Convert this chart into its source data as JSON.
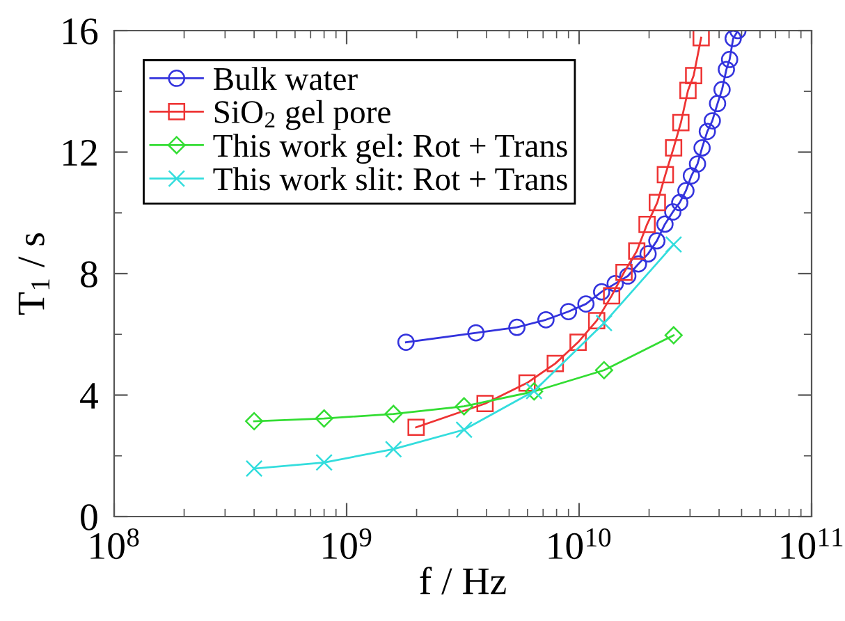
{
  "chart_data": {
    "type": "line",
    "xlabel": "f / Hz",
    "ylabel": "T$_{1}$ / s",
    "log": "x",
    "xlim": [
      100000000.0,
      100000000000.0
    ],
    "xticks": [
      {
        "value": 100000000.0,
        "label": "10$^{8}$"
      },
      {
        "value": 1000000000.0,
        "label": "10$^{9}$"
      },
      {
        "value": 10000000000.0,
        "label": "10$^{10}$"
      },
      {
        "value": 100000000000.0,
        "label": "10$^{11}$"
      }
    ],
    "ylim": [
      0,
      16
    ],
    "yticks": [
      0,
      4,
      8,
      12,
      16
    ],
    "grid": false,
    "legend": "top left",
    "line_style": "solid",
    "series": [
      {
        "name": "Bulk water",
        "color": "#3333dd",
        "marker": "circle",
        "x": [
          1800000000.0,
          3600000000.0,
          5400000000.0,
          7200000000.0,
          9000000000.0,
          10700000000.0,
          12500000000.0,
          14300000000.0,
          16200000000.0,
          18000000000.0,
          19800000000.0,
          21600000000.0,
          23400000000.0,
          25300000000.0,
          27100000000.0,
          28800000000.0,
          30400000000.0,
          32300000000.0,
          33800000000.0,
          35600000000.0,
          37400000000.0,
          39400000000.0,
          41200000000.0,
          43000000000.0,
          44400000000.0,
          46000000000.0,
          48200000000.0
        ],
        "values": [
          5.74,
          6.05,
          6.23,
          6.48,
          6.75,
          7.0,
          7.4,
          7.67,
          7.92,
          8.32,
          8.65,
          9.08,
          9.63,
          10.03,
          10.34,
          10.73,
          11.22,
          11.61,
          12.14,
          12.68,
          13.03,
          13.6,
          14.06,
          14.72,
          15.05,
          15.74,
          16.0
        ]
      },
      {
        "name": "SiO$_{2}$ gel pore",
        "color": "#ee3333",
        "marker": "square",
        "x": [
          1990000000.0,
          3940000000.0,
          5970000000.0,
          7900000000.0,
          9900000000.0,
          11900000000.0,
          13800000000.0,
          15600000000.0,
          17700000000.0,
          19600000000.0,
          21700000000.0,
          23500000000.0,
          25500000000.0,
          27400000000.0,
          29400000000.0,
          31100000000.0,
          33500000000.0
        ],
        "values": [
          2.94,
          3.72,
          4.4,
          5.04,
          5.74,
          6.45,
          7.27,
          8.04,
          8.74,
          9.62,
          10.34,
          11.26,
          12.14,
          12.97,
          14.03,
          14.52,
          15.77
        ]
      },
      {
        "name": "This work gel: Rot + Trans",
        "color": "#33dd33",
        "marker": "diamond",
        "x": [
          400000000.0,
          800000000.0,
          1590000000.0,
          3200000000.0,
          6400000000.0,
          12800000000.0,
          25500000000.0
        ],
        "values": [
          3.14,
          3.23,
          3.38,
          3.63,
          4.12,
          4.82,
          5.97
        ]
      },
      {
        "name": "This work slit: Rot + Trans",
        "color": "#33dddd",
        "marker": "cross",
        "x": [
          400000000.0,
          800000000.0,
          1590000000.0,
          3200000000.0,
          6400000000.0,
          12800000000.0,
          25500000000.0
        ],
        "values": [
          1.58,
          1.78,
          2.22,
          2.86,
          4.13,
          6.37,
          8.96
        ]
      }
    ]
  }
}
